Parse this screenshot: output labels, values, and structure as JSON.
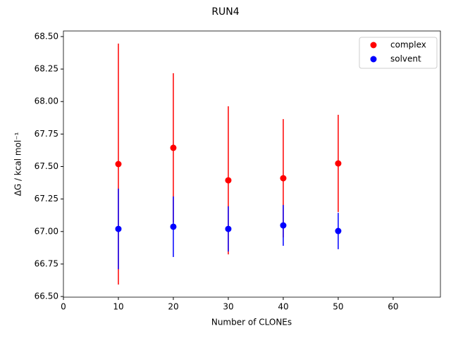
{
  "chart_data": {
    "type": "errorbar-scatter",
    "title": "RUN4",
    "x_label": "Number of CLONEs",
    "y_label": "ΔG / kcal mol⁻¹",
    "x": [
      10,
      20,
      30,
      40,
      50
    ],
    "series": [
      {
        "name": "complex",
        "color": "#ff0000",
        "values": [
          67.519,
          67.644,
          67.394,
          67.41,
          67.524
        ],
        "errors": [
          0.927,
          0.574,
          0.57,
          0.455,
          0.374
        ]
      },
      {
        "name": "solvent",
        "color": "#0000ff",
        "values": [
          67.02,
          67.037,
          67.02,
          67.047,
          67.004
        ],
        "errors": [
          0.31,
          0.233,
          0.174,
          0.157,
          0.14
        ]
      }
    ],
    "xlim": [
      0,
      68.6
    ],
    "xticks": [
      0,
      10,
      20,
      30,
      40,
      50,
      60
    ],
    "ylim": [
      66.495,
      68.543
    ],
    "yticks": [
      {
        "value": 66.5,
        "label": "66.50"
      },
      {
        "value": 66.75,
        "label": "66.75"
      },
      {
        "value": 67,
        "label": "67.00"
      },
      {
        "value": 67.25,
        "label": "67.25"
      },
      {
        "value": 67.5,
        "label": "67.50"
      },
      {
        "value": 67.75,
        "label": "67.75"
      },
      {
        "value": 68,
        "label": "68.00"
      },
      {
        "value": 68.25,
        "label": "68.25"
      },
      {
        "value": 68.5,
        "label": "68.50"
      }
    ],
    "legend_position": "upper right"
  }
}
